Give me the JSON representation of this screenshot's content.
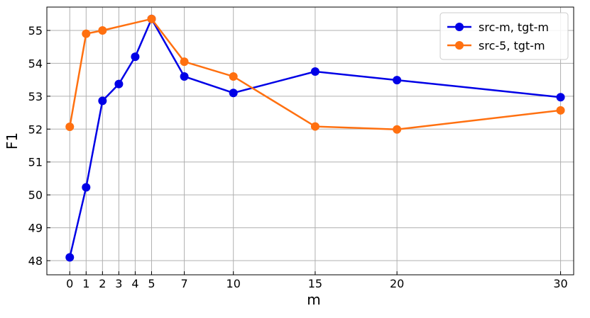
{
  "chart_data": {
    "type": "line",
    "xlabel": "m",
    "ylabel": "F1",
    "xlim": [
      -1.4,
      30.8
    ],
    "ylim": [
      47.57,
      55.71
    ],
    "xticks": [
      0,
      1,
      2,
      3,
      4,
      5,
      7,
      10,
      15,
      20,
      30
    ],
    "yticks": [
      48,
      49,
      50,
      51,
      52,
      53,
      54,
      55
    ],
    "grid": true,
    "legend": "upper right",
    "series": [
      {
        "name": "src-m, tgt-m",
        "color": "#0000e6",
        "x": [
          0,
          1,
          2,
          3,
          4,
          5,
          7,
          10,
          15,
          20,
          30
        ],
        "values": [
          48.1,
          50.23,
          52.86,
          53.37,
          54.2,
          55.35,
          53.6,
          53.1,
          53.75,
          53.49,
          52.97
        ]
      },
      {
        "name": "src-5, tgt-m",
        "color": "#ff7010",
        "x": [
          0,
          1,
          2,
          5,
          7,
          10,
          15,
          20,
          30
        ],
        "values": [
          52.07,
          54.9,
          55.0,
          55.35,
          54.05,
          53.6,
          52.08,
          51.99,
          52.57
        ]
      }
    ]
  }
}
